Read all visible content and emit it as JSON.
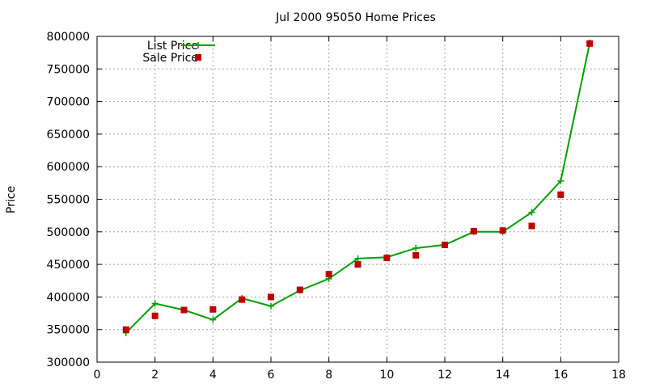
{
  "chart_data": {
    "type": "line",
    "title": "Jul 2000 95050 Home Prices",
    "xlabel": "",
    "ylabel": "Price",
    "xlim": [
      0,
      18
    ],
    "ylim": [
      300000,
      800000
    ],
    "x_ticks": [
      "0",
      "2",
      "4",
      "6",
      "8",
      "10",
      "12",
      "14",
      "16",
      "18"
    ],
    "y_ticks": [
      "300000",
      "350000",
      "400000",
      "450000",
      "500000",
      "550000",
      "600000",
      "650000",
      "700000",
      "750000",
      "800000"
    ],
    "grid": true,
    "legend_position": "top-left",
    "series": [
      {
        "name": "List Price",
        "style": "line+cross",
        "color": "#00a000",
        "x": [
          1,
          2,
          3,
          4,
          5,
          6,
          7,
          8,
          9,
          10,
          11,
          12,
          13,
          14,
          15,
          16,
          17
        ],
        "y": [
          345000,
          390000,
          380000,
          365000,
          398000,
          386000,
          410000,
          428000,
          459000,
          461000,
          475000,
          480000,
          500000,
          500000,
          530000,
          578000,
          790000
        ]
      },
      {
        "name": "Sale Price",
        "style": "points-square",
        "color": "#c00000",
        "x": [
          1,
          2,
          3,
          4,
          5,
          6,
          7,
          8,
          9,
          10,
          11,
          12,
          13,
          14,
          15,
          16,
          17
        ],
        "y": [
          350000,
          371000,
          380000,
          381000,
          396000,
          400000,
          411000,
          435000,
          450000,
          460000,
          464000,
          480000,
          501000,
          502000,
          509000,
          557000,
          789000
        ]
      }
    ]
  }
}
